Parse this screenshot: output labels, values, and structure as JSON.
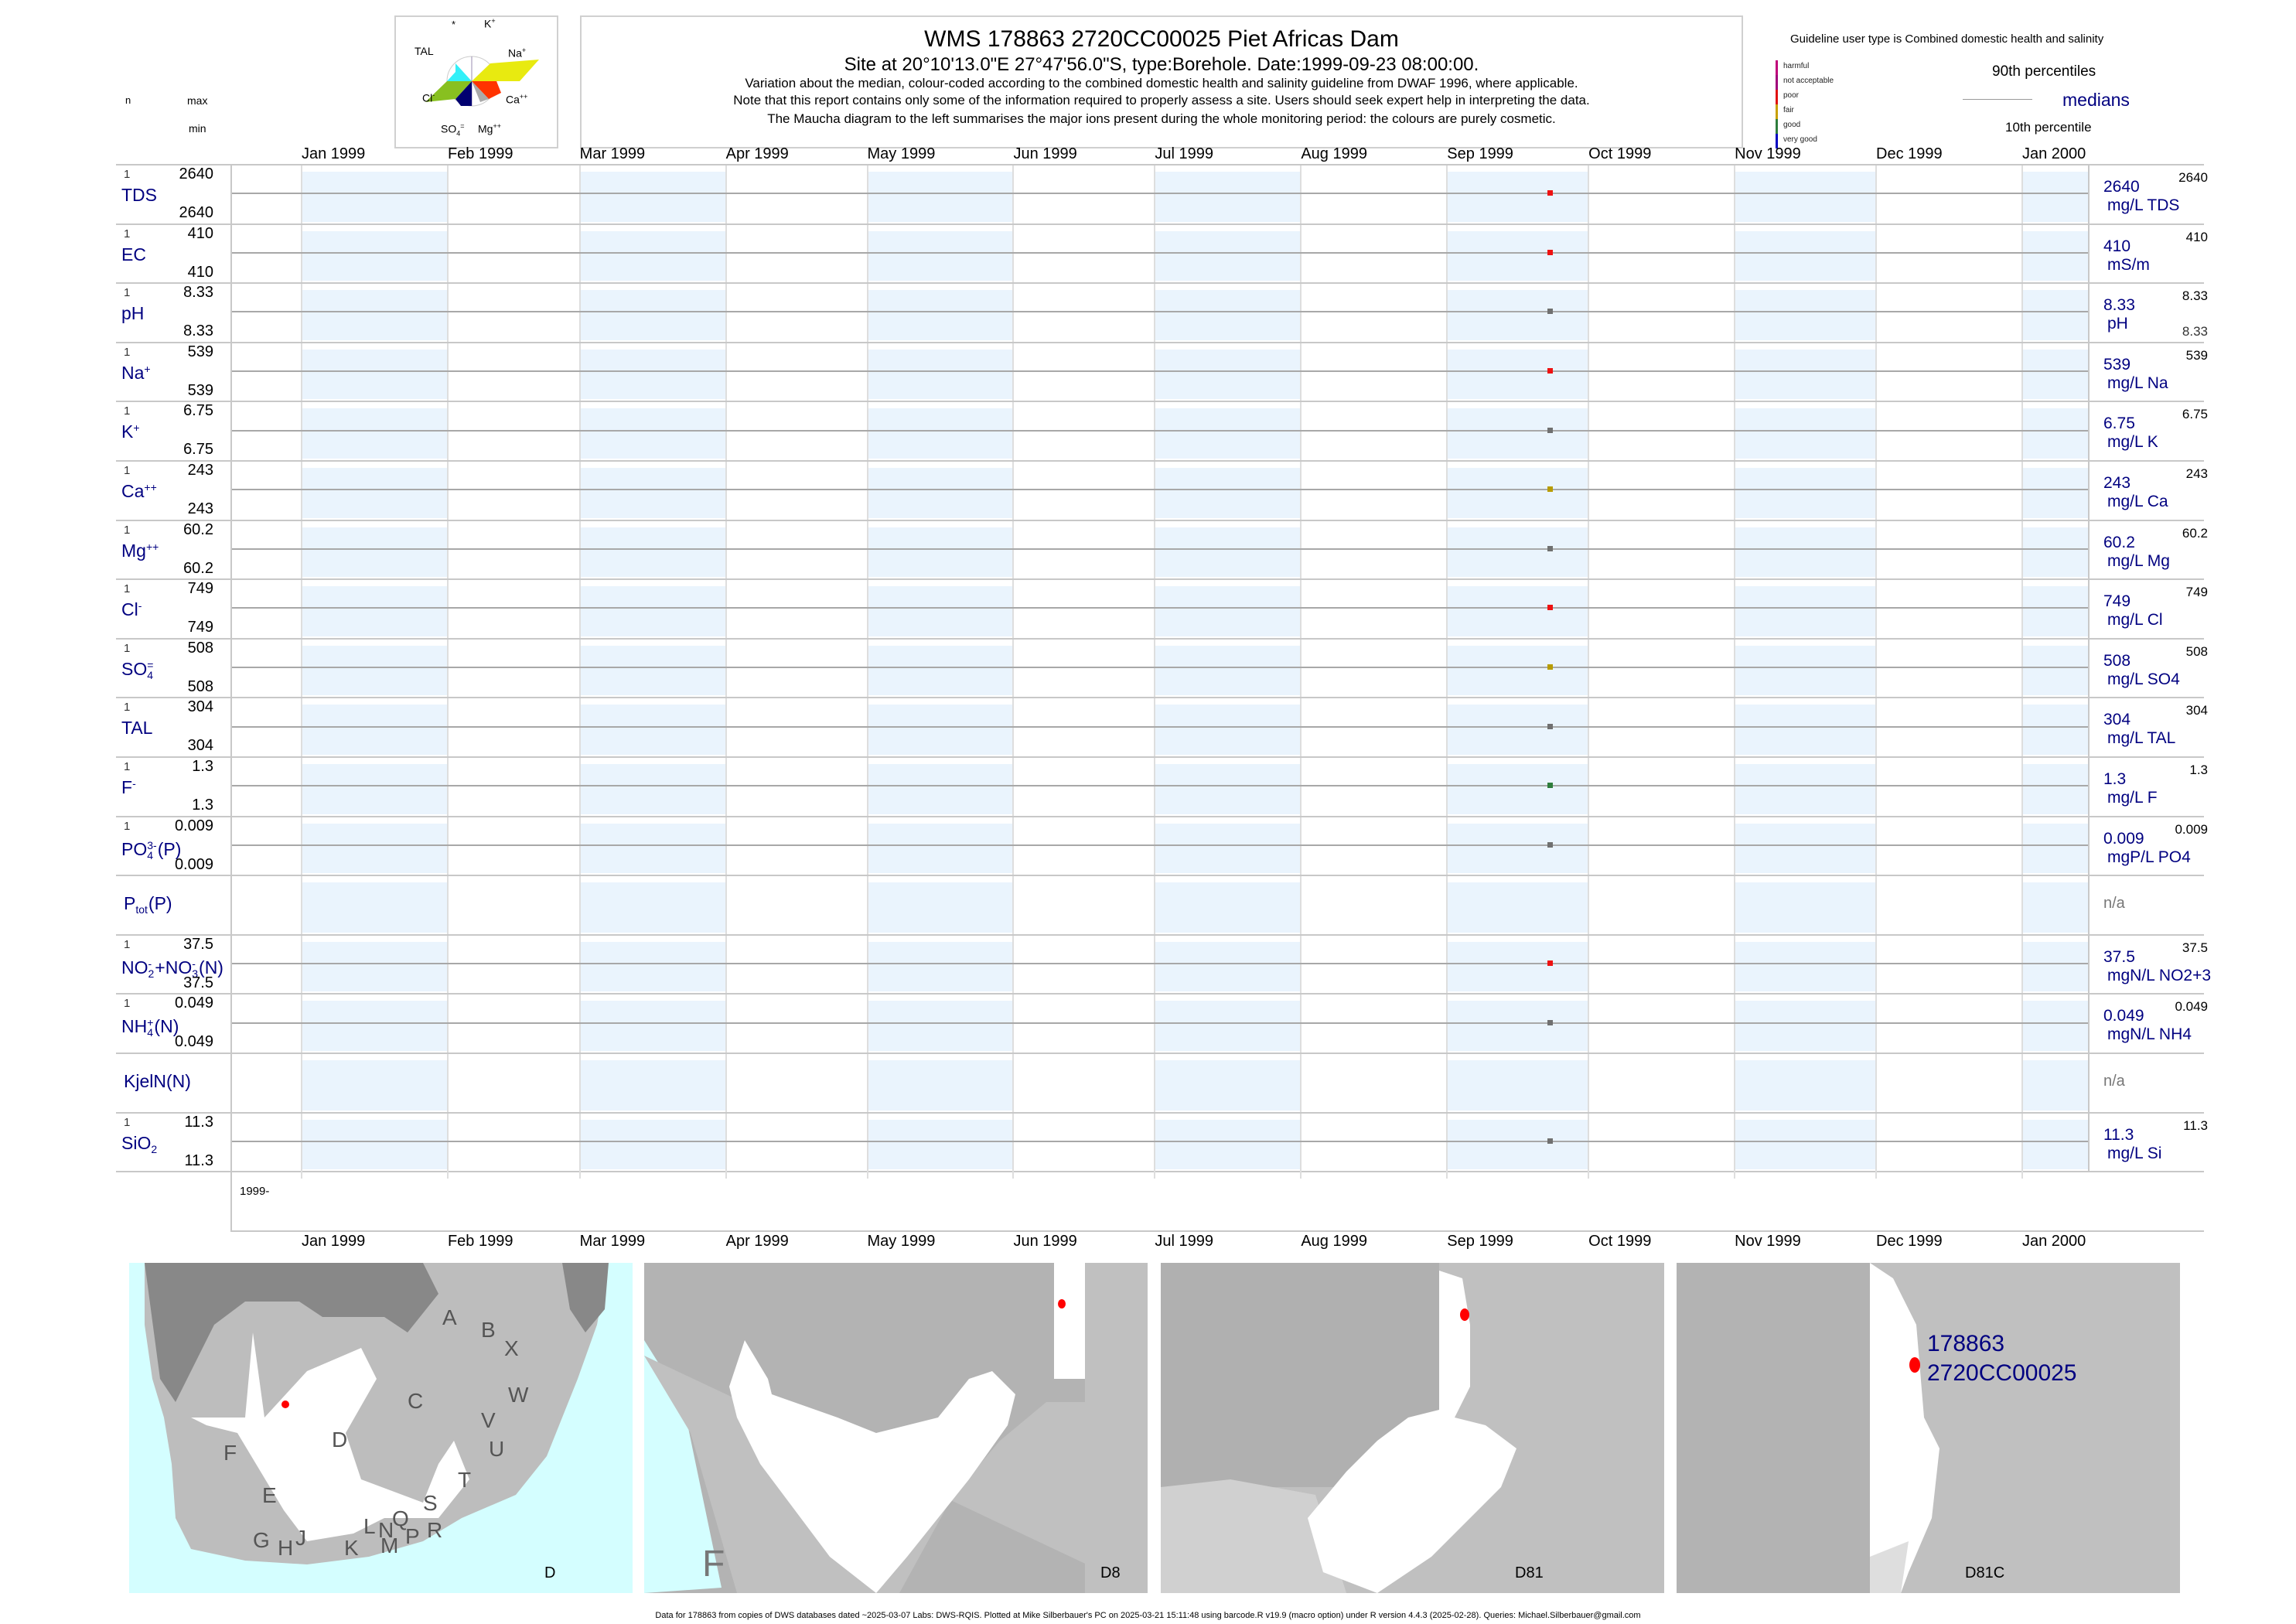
{
  "header": {
    "title": "WMS 178863 2720CC00025 Piet Africas Dam",
    "subtitle": "Site at 20°10'13.0\"E 27°47'56.0\"S, type:Borehole. Date:1999-09-23 08:00:00.",
    "note1": "Variation about the median,  colour-coded according to the combined domestic health and salinity guideline from DWAF 1996, where applicable.",
    "note2": "Note that this report contains only some of the information required to properly assess a site. Users should seek expert help in interpreting the data.",
    "note3": "The Maucha diagram to the left summarises the major ions present during the whole monitoring period: the colours are purely cosmetic."
  },
  "column_headers": {
    "n": "n",
    "max": "max",
    "min": "min"
  },
  "maucha": {
    "labels": {
      "star": "*",
      "k": "K",
      "k_sup": "+",
      "tal": "TAL",
      "na": "Na",
      "na_sup": "+",
      "cl": "Cl",
      "cl_sup": "-",
      "ca": "Ca",
      "ca_sup": "++",
      "so4": "SO",
      "so4_sub": "4",
      "so4_sup": "=",
      "mg": "Mg",
      "mg_sup": "++"
    },
    "colors": {
      "na": "#e8ea10",
      "ca": "#ff3300",
      "mg": "#aaaaaa",
      "so4": "#000070",
      "cl": "#88c020",
      "tal": "#33f0f8"
    }
  },
  "guideline": {
    "title": "Guideline user type is Combined domestic health and salinity",
    "classes": [
      {
        "label": "harmful",
        "color": "#c0007a"
      },
      {
        "label": "not acceptable",
        "color": "#a0007a"
      },
      {
        "label": "poor",
        "color": "#e01010"
      },
      {
        "label": "fair",
        "color": "#c8a000"
      },
      {
        "label": "good",
        "color": "#2e7d3c"
      },
      {
        "label": "very good",
        "color": "#0000c0"
      }
    ],
    "p90": "90th percentiles",
    "medians": "medians",
    "p10": "10th percentile"
  },
  "chart_data": {
    "type": "scatter",
    "title": "WMS 178863 2720CC00025 Piet Africas Dam",
    "x_axis": {
      "start": "1999-01-01",
      "end": "2000-01-01",
      "tick_labels": [
        "Jan 1999",
        "Feb 1999",
        "Mar 1999",
        "Apr 1999",
        "May 1999",
        "Jun 1999",
        "Jul 1999",
        "Aug 1999",
        "Sep 1999",
        "Oct 1999",
        "Nov 1999",
        "Dec 1999",
        "Jan 2000"
      ]
    },
    "year_label": "1999-",
    "sample_date": "1999-09-23",
    "series": [
      {
        "name": "TDS",
        "parts": [
          {
            "t": "TDS"
          }
        ],
        "n": "1",
        "max": "2640",
        "min": "2640",
        "median": "2640",
        "unit": "mg/L TDS",
        "rmax": "2640",
        "value": 2640,
        "color": "#ee1111"
      },
      {
        "name": "EC",
        "parts": [
          {
            "t": "EC"
          }
        ],
        "n": "1",
        "max": "410",
        "min": "410",
        "median": "410",
        "unit": "mS/m",
        "rmax": "410",
        "value": 410,
        "color": "#ee1111"
      },
      {
        "name": "pH",
        "parts": [
          {
            "t": "pH"
          }
        ],
        "n": "1",
        "max": "8.33",
        "min": "8.33",
        "median": "8.33",
        "unit": "pH",
        "rmax": "8.33",
        "rmin": "8.33",
        "value": 8.33,
        "color": "#707070"
      },
      {
        "name": "Na",
        "parts": [
          {
            "t": "Na",
            "sup": "+"
          }
        ],
        "n": "1",
        "max": "539",
        "min": "539",
        "median": "539",
        "unit": "mg/L Na",
        "rmax": "539",
        "value": 539,
        "color": "#ee1111"
      },
      {
        "name": "K",
        "parts": [
          {
            "t": "K",
            "sup": "+"
          }
        ],
        "n": "1",
        "max": "6.75",
        "min": "6.75",
        "median": "6.75",
        "unit": "mg/L K",
        "rmax": "6.75",
        "value": 6.75,
        "color": "#707070"
      },
      {
        "name": "Ca",
        "parts": [
          {
            "t": "Ca",
            "sup": "++"
          }
        ],
        "n": "1",
        "max": "243",
        "min": "243",
        "median": "243",
        "unit": "mg/L Ca",
        "rmax": "243",
        "value": 243,
        "color": "#b89c00"
      },
      {
        "name": "Mg",
        "parts": [
          {
            "t": "Mg",
            "sup": "++"
          }
        ],
        "n": "1",
        "max": "60.2",
        "min": "60.2",
        "median": "60.2",
        "unit": "mg/L Mg",
        "rmax": "60.2",
        "value": 60.2,
        "color": "#707070"
      },
      {
        "name": "Cl",
        "parts": [
          {
            "t": "Cl",
            "sup": "-"
          }
        ],
        "n": "1",
        "max": "749",
        "min": "749",
        "median": "749",
        "unit": "mg/L Cl",
        "rmax": "749",
        "value": 749,
        "color": "#ee1111"
      },
      {
        "name": "SO4",
        "parts": [
          {
            "t": "SO",
            "sub": "4",
            "sup": "="
          }
        ],
        "n": "1",
        "max": "508",
        "min": "508",
        "median": "508",
        "unit": "mg/L SO4",
        "rmax": "508",
        "value": 508,
        "color": "#b89c00"
      },
      {
        "name": "TAL",
        "parts": [
          {
            "t": "TAL"
          }
        ],
        "n": "1",
        "max": "304",
        "min": "304",
        "median": "304",
        "unit": "mg/L TAL",
        "rmax": "304",
        "value": 304,
        "color": "#707070"
      },
      {
        "name": "F",
        "parts": [
          {
            "t": "F",
            "sup": "-"
          }
        ],
        "n": "1",
        "max": "1.3",
        "min": "1.3",
        "median": "1.3",
        "unit": "mg/L F",
        "rmax": "1.3",
        "value": 1.3,
        "color": "#2e7d3c"
      },
      {
        "name": "PO4",
        "parts": [
          {
            "t": "PO",
            "sub": "4",
            "sup": "3-"
          },
          {
            "t": "(P)"
          }
        ],
        "n": "1",
        "max": "0.009",
        "min": "0.009",
        "median": "0.009",
        "unit": "mgP/L PO4",
        "rmax": "0.009",
        "value": 0.009,
        "color": "#707070"
      },
      {
        "name": "Ptot",
        "parts": [
          {
            "t": "P"
          },
          {
            "t": "",
            "sub": "tot"
          },
          {
            "t": "(P)"
          }
        ],
        "na": "n/a"
      },
      {
        "name": "NO2+NO3",
        "parts": [
          {
            "t": "NO",
            "sub": "2",
            "sup": "-"
          },
          {
            "t": "+NO",
            "sub": "3",
            "sup": "-"
          },
          {
            "t": "(N)"
          }
        ],
        "n": "1",
        "max": "37.5",
        "min": "37.5",
        "median": "37.5",
        "unit": "mgN/L NO2+3",
        "rmax": "37.5",
        "value": 37.5,
        "color": "#ee1111"
      },
      {
        "name": "NH4",
        "parts": [
          {
            "t": "NH",
            "sub": "4",
            "sup": "+"
          },
          {
            "t": "(N)"
          }
        ],
        "n": "1",
        "max": "0.049",
        "min": "0.049",
        "median": "0.049",
        "unit": "mgN/L NH4",
        "rmax": "0.049",
        "value": 0.049,
        "color": "#707070"
      },
      {
        "name": "KjelN",
        "parts": [
          {
            "t": "KjelN(N)"
          }
        ],
        "na": "n/a"
      },
      {
        "name": "SiO2",
        "parts": [
          {
            "t": "SiO",
            "sub": "2"
          }
        ],
        "n": "1",
        "max": "11.3",
        "min": "11.3",
        "median": "11.3",
        "unit": "mg/L Si",
        "rmax": "11.3",
        "value": 11.3,
        "color": "#707070"
      }
    ]
  },
  "maps": [
    {
      "label": "D",
      "regions": [
        "A",
        "B",
        "X",
        "W",
        "C",
        "V",
        "U",
        "D",
        "F",
        "T",
        "E",
        "S",
        "Q",
        "N",
        "L",
        "R",
        "P",
        "G",
        "J",
        "H",
        "K",
        "M"
      ]
    },
    {
      "label": "D8",
      "regions": [
        "F"
      ]
    },
    {
      "label": "D81"
    },
    {
      "label": "D81C",
      "site_id": "178863",
      "site_code": "2720CC00025"
    }
  ],
  "footer": "Data for 178863 from copies of DWS databases dated ~2025-03-07 Labs: DWS-RQIS. Plotted at Mike Silberbauer's PC on 2025-03-21 15:11:48 using barcode.R v19.9 (macro option) under R version 4.4.3 (2025-02-28). Queries: Michael.Silberbauer@gmail.com"
}
